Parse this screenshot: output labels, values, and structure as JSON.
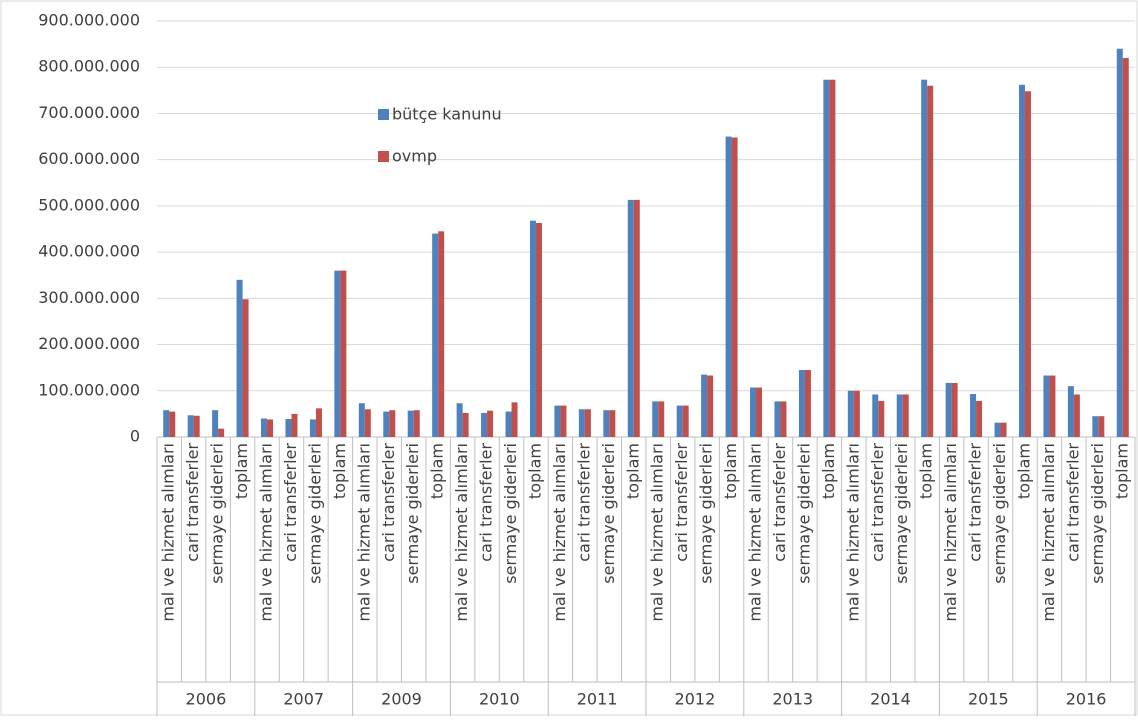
{
  "chart_data": {
    "type": "bar",
    "groups": [
      "2006",
      "2007",
      "2009",
      "2010",
      "2011",
      "2012",
      "2013",
      "2014",
      "2015",
      "2016"
    ],
    "categories": [
      "mal ve hizmet alımları",
      "cari transferler",
      "sermaye giderleri",
      "toplam",
      "mal ve hizmet alımları",
      "cari transferler",
      "sermaye giderleri",
      "toplam",
      "mal ve hizmet alımları",
      "cari transferler",
      "sermaye giderleri",
      "toplam",
      "mal ve hizmet alımları",
      "cari transferler",
      "sermaye giderleri",
      "toplam",
      "mal ve hizmet alımları",
      "cari transferler",
      "sermaye giderleri",
      "toplam",
      "mal ve hizmet alımları",
      "cari transferler",
      "sermaye giderleri",
      "toplam",
      "mal ve hizmet alımları",
      "cari transferler",
      "sermaye giderleri",
      "toplam",
      "mal ve hizmet alımları",
      "cari transferler",
      "sermaye giderleri",
      "toplam",
      "mal ve hizmet alımları",
      "cari transferler",
      "sermaye giderleri",
      "toplam",
      "mal ve hizmet alımları",
      "cari transferler",
      "sermaye giderleri",
      "toplam"
    ],
    "series": [
      {
        "name": "bütçe kanunu",
        "color": "#4f81bd",
        "values": [
          58000000,
          47000000,
          58000000,
          340000000,
          40000000,
          39000000,
          38000000,
          360000000,
          73000000,
          55000000,
          57000000,
          440000000,
          73000000,
          52000000,
          55000000,
          468000000,
          68000000,
          60000000,
          58000000,
          513000000,
          77000000,
          68000000,
          135000000,
          650000000,
          107000000,
          77000000,
          145000000,
          773000000,
          100000000,
          92000000,
          92000000,
          773000000,
          117000000,
          93000000,
          31000000,
          762000000,
          133000000,
          110000000,
          45000000,
          840000000
        ]
      },
      {
        "name": "ovmp",
        "color": "#c0504d",
        "values": [
          55000000,
          46000000,
          18000000,
          298000000,
          38000000,
          50000000,
          62000000,
          360000000,
          60000000,
          58000000,
          58000000,
          445000000,
          52000000,
          57000000,
          75000000,
          463000000,
          68000000,
          60000000,
          58000000,
          513000000,
          77000000,
          68000000,
          133000000,
          648000000,
          107000000,
          77000000,
          145000000,
          773000000,
          100000000,
          78000000,
          92000000,
          760000000,
          117000000,
          78000000,
          31000000,
          748000000,
          133000000,
          92000000,
          45000000,
          820000000
        ]
      }
    ],
    "ylim": [
      0,
      900000000
    ],
    "yticks": [
      0,
      {
        "value": 100000000,
        "label": "100.000.000"
      },
      {
        "value": 200000000,
        "label": "200.000.000"
      },
      {
        "value": 300000000,
        "label": "300.000.000"
      },
      {
        "value": 400000000,
        "label": "400.000.000"
      },
      {
        "value": 500000000,
        "label": "500.000.000"
      },
      {
        "value": 600000000,
        "label": "600.000.000"
      },
      {
        "value": 700000000,
        "label": "700.000.000"
      },
      {
        "value": 800000000,
        "label": "800.000.000"
      },
      {
        "value": 900000000,
        "label": "900.000.000"
      }
    ],
    "grid": true,
    "legend": "upper-left"
  }
}
